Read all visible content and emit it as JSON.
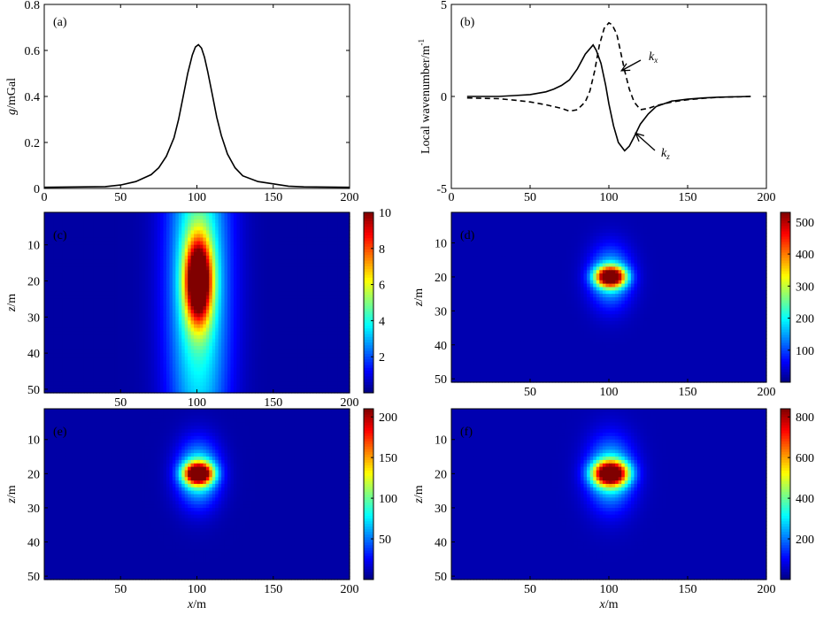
{
  "chart_data": [
    {
      "id": "a",
      "type": "line",
      "panel_label": "(a)",
      "xlabel": "",
      "ylabel_italic": "g",
      "ylabel_rest": "/mGal",
      "xlim": [
        0,
        200
      ],
      "ylim": [
        0,
        0.8
      ],
      "xticks": [
        "0",
        "50",
        "100",
        "150",
        "200"
      ],
      "yticks": [
        "0",
        "0.2",
        "0.4",
        "0.6",
        "0.8"
      ],
      "series": [
        {
          "name": "g",
          "style": "solid",
          "x": [
            0,
            40,
            50,
            60,
            70,
            75,
            80,
            85,
            88,
            91,
            94,
            97,
            99,
            101,
            103,
            105,
            107,
            110,
            113,
            116,
            120,
            125,
            130,
            140,
            150,
            160,
            170,
            200
          ],
          "y": [
            0.005,
            0.008,
            0.015,
            0.03,
            0.06,
            0.09,
            0.14,
            0.22,
            0.3,
            0.4,
            0.5,
            0.58,
            0.615,
            0.625,
            0.61,
            0.57,
            0.51,
            0.41,
            0.31,
            0.23,
            0.15,
            0.09,
            0.055,
            0.03,
            0.02,
            0.01,
            0.007,
            0.005
          ]
        }
      ]
    },
    {
      "id": "b",
      "type": "line",
      "panel_label": "(b)",
      "xlabel": "",
      "ylabel_text": "Local wavenumber/m",
      "ylabel_sup": "-1",
      "xlim": [
        0,
        200
      ],
      "ylim": [
        -5,
        5
      ],
      "xticks": [
        "0",
        "50",
        "100",
        "150",
        "200"
      ],
      "yticks": [
        "-5",
        "0",
        "5"
      ],
      "series": [
        {
          "name": "kz",
          "label_main": "k",
          "label_sub": "z",
          "style": "solid",
          "x": [
            10,
            30,
            40,
            50,
            60,
            65,
            70,
            75,
            80,
            85,
            90,
            92,
            95,
            98,
            100,
            103,
            106,
            110,
            113,
            116,
            120,
            125,
            130,
            140,
            150,
            160,
            170,
            190
          ],
          "y": [
            0,
            0,
            0.05,
            0.1,
            0.25,
            0.4,
            0.6,
            0.9,
            1.5,
            2.3,
            2.8,
            2.5,
            1.8,
            0.6,
            -0.4,
            -1.6,
            -2.5,
            -2.95,
            -2.7,
            -2.2,
            -1.5,
            -0.95,
            -0.55,
            -0.25,
            -0.15,
            -0.08,
            -0.04,
            0
          ]
        },
        {
          "name": "kx",
          "label_main": "k",
          "label_sub": "x",
          "style": "dashed",
          "x": [
            10,
            30,
            40,
            50,
            60,
            70,
            75,
            80,
            85,
            88,
            91,
            94,
            97,
            100,
            102,
            105,
            107,
            110,
            113,
            116,
            120,
            125,
            130,
            140,
            150,
            160,
            170,
            190
          ],
          "y": [
            -0.08,
            -0.12,
            -0.2,
            -0.3,
            -0.45,
            -0.65,
            -0.8,
            -0.72,
            -0.3,
            0.3,
            1.4,
            2.8,
            3.7,
            4.0,
            3.9,
            3.4,
            2.6,
            1.4,
            0.4,
            -0.3,
            -0.72,
            -0.65,
            -0.5,
            -0.3,
            -0.18,
            -0.1,
            -0.05,
            0
          ]
        }
      ]
    },
    {
      "id": "c",
      "type": "heatmap",
      "panel_label": "(c)",
      "ylabel_italic": "z",
      "ylabel_rest": "/m",
      "xlabel_italic": "",
      "xlabel_rest": "",
      "xlim": [
        0,
        200
      ],
      "ylim": [
        1,
        51
      ],
      "xticks": [
        "50",
        "100",
        "150",
        "200"
      ],
      "yticks": [
        "10",
        "20",
        "30",
        "40",
        "50"
      ],
      "clim": [
        0,
        10
      ],
      "cticks": [
        "2",
        "4",
        "6",
        "8",
        "10"
      ],
      "source": {
        "center_x": 101,
        "center_z": 20,
        "peak": 10,
        "core_sigma_x": 6,
        "core_sigma_z": 8,
        "halo_sigma_x": 14,
        "halo_sigma_z": 38,
        "halo_amp": 4.2,
        "floor": 0.35
      }
    },
    {
      "id": "d",
      "type": "heatmap",
      "panel_label": "(d)",
      "ylabel_italic": "z",
      "ylabel_rest": "/m",
      "xlabel_italic": "",
      "xlabel_rest": "",
      "xlim": [
        0,
        200
      ],
      "ylim": [
        1,
        51
      ],
      "xticks": [
        "50",
        "100",
        "150",
        "200"
      ],
      "yticks": [
        "10",
        "20",
        "30",
        "40",
        "50"
      ],
      "clim": [
        0,
        530
      ],
      "cticks": [
        "100",
        "200",
        "300",
        "400",
        "500"
      ],
      "source": {
        "center_x": 101,
        "center_z": 20,
        "peak": 530,
        "core_sigma_x": 6.5,
        "core_sigma_z": 2.0,
        "halo_sigma_x": 9,
        "halo_sigma_z": 6,
        "halo_amp": 170,
        "floor": 25
      }
    },
    {
      "id": "e",
      "type": "heatmap",
      "panel_label": "(e)",
      "ylabel_italic": "z",
      "ylabel_rest": "/m",
      "xlabel_italic": "x",
      "xlabel_rest": "/m",
      "xlim": [
        0,
        200
      ],
      "ylim": [
        1,
        51
      ],
      "xticks": [
        "50",
        "100",
        "150",
        "200"
      ],
      "yticks": [
        "10",
        "20",
        "30",
        "40",
        "50"
      ],
      "clim": [
        0,
        210
      ],
      "cticks": [
        "50",
        "100",
        "150",
        "200"
      ],
      "source": {
        "center_x": 101,
        "center_z": 20,
        "peak": 210,
        "core_sigma_x": 6.5,
        "core_sigma_z": 2.2,
        "halo_sigma_x": 9.5,
        "halo_sigma_z": 6.5,
        "halo_amp": 80,
        "floor": 8
      }
    },
    {
      "id": "f",
      "type": "heatmap",
      "panel_label": "(f)",
      "ylabel_italic": "z",
      "ylabel_rest": "/m",
      "xlabel_italic": "x",
      "xlabel_rest": "/m",
      "xlim": [
        0,
        200
      ],
      "ylim": [
        1,
        51
      ],
      "xticks": [
        "50",
        "100",
        "150",
        "200"
      ],
      "yticks": [
        "10",
        "20",
        "30",
        "40",
        "50"
      ],
      "clim": [
        0,
        840
      ],
      "cticks": [
        "200",
        "400",
        "600",
        "800"
      ],
      "source": {
        "center_x": 101,
        "center_z": 20,
        "peak": 840,
        "core_sigma_x": 7.5,
        "core_sigma_z": 2.4,
        "halo_sigma_x": 10,
        "halo_sigma_z": 7,
        "halo_amp": 300,
        "floor": 40
      }
    }
  ]
}
